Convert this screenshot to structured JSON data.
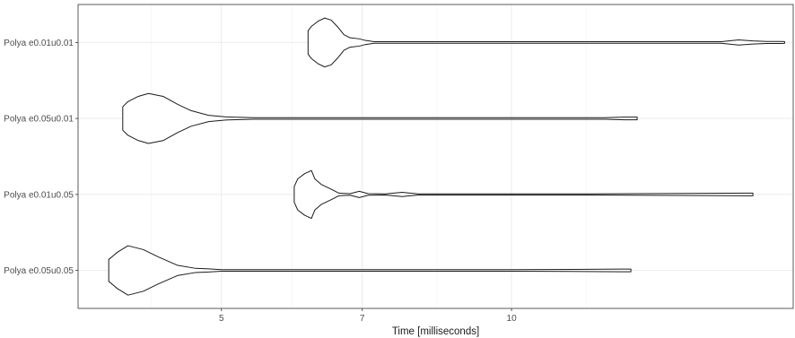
{
  "chart_data": {
    "type": "violin",
    "title": "",
    "xlabel": "Time [milliseconds]",
    "ylabel": "",
    "x_scale": "log",
    "xlim": [
      3.55,
      19.6
    ],
    "x_ticks": [
      5,
      7,
      10
    ],
    "x_tick_labels": [
      "5",
      "7",
      "10"
    ],
    "categories": [
      "Polya e0.01u0.01",
      "Polya e0.05u0.01",
      "Polya e0.01u0.05",
      "Polya e0.05u0.05"
    ],
    "grid": true,
    "series": [
      {
        "category": "Polya e0.01u0.01",
        "range": [
          6.15,
          19.2
        ],
        "profile": [
          [
            6.15,
            0.45
          ],
          [
            6.2,
            0.62
          ],
          [
            6.3,
            0.82
          ],
          [
            6.4,
            0.94
          ],
          [
            6.5,
            0.86
          ],
          [
            6.6,
            0.6
          ],
          [
            6.7,
            0.3
          ],
          [
            6.8,
            0.18
          ],
          [
            6.95,
            0.14
          ],
          [
            7.05,
            0.08
          ],
          [
            7.2,
            0.03
          ],
          [
            12,
            0.03
          ],
          [
            16.5,
            0.03
          ],
          [
            17.2,
            0.1
          ],
          [
            17.8,
            0.06
          ],
          [
            18.4,
            0.04
          ],
          [
            19.0,
            0.04
          ],
          [
            19.2,
            0.035
          ]
        ]
      },
      {
        "category": "Polya e0.05u0.01",
        "range": [
          3.95,
          13.5
        ],
        "profile": [
          [
            3.95,
            0.45
          ],
          [
            4.0,
            0.65
          ],
          [
            4.1,
            0.85
          ],
          [
            4.2,
            0.96
          ],
          [
            4.35,
            0.85
          ],
          [
            4.5,
            0.55
          ],
          [
            4.65,
            0.3
          ],
          [
            4.85,
            0.12
          ],
          [
            5.05,
            0.06
          ],
          [
            5.4,
            0.03
          ],
          [
            10,
            0.03
          ],
          [
            12.5,
            0.03
          ],
          [
            13.1,
            0.05
          ],
          [
            13.5,
            0.05
          ]
        ]
      },
      {
        "category": "Polya e0.01u0.05",
        "range": [
          5.95,
          17.8
        ],
        "profile": [
          [
            5.95,
            0.3
          ],
          [
            6.0,
            0.6
          ],
          [
            6.1,
            0.8
          ],
          [
            6.2,
            0.92
          ],
          [
            6.25,
            0.6
          ],
          [
            6.35,
            0.38
          ],
          [
            6.5,
            0.2
          ],
          [
            6.62,
            0.05
          ],
          [
            6.8,
            0.03
          ],
          [
            6.95,
            0.12
          ],
          [
            7.1,
            0.03
          ],
          [
            7.4,
            0.02
          ],
          [
            7.7,
            0.08
          ],
          [
            8.0,
            0.02
          ],
          [
            12,
            0.02
          ],
          [
            17.7,
            0.05
          ],
          [
            17.8,
            0.05
          ]
        ]
      },
      {
        "category": "Polya e0.05u0.05",
        "range": [
          3.82,
          13.3
        ],
        "profile": [
          [
            3.82,
            0.42
          ],
          [
            3.9,
            0.7
          ],
          [
            4.0,
            0.95
          ],
          [
            4.15,
            0.8
          ],
          [
            4.3,
            0.52
          ],
          [
            4.5,
            0.2
          ],
          [
            4.7,
            0.08
          ],
          [
            4.85,
            0.06
          ],
          [
            5.0,
            0.03
          ],
          [
            5.5,
            0.03
          ],
          [
            10,
            0.03
          ],
          [
            13.0,
            0.05
          ],
          [
            13.3,
            0.05
          ]
        ]
      }
    ]
  }
}
